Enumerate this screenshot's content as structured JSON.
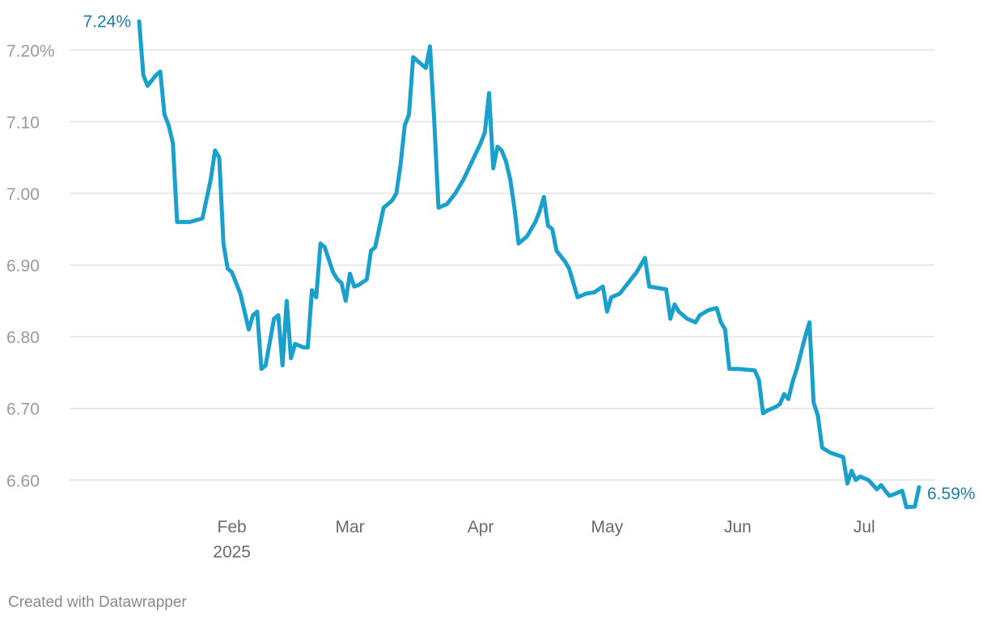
{
  "chart_data": {
    "type": "line",
    "title": "",
    "xlabel": "",
    "ylabel": "",
    "ylim": [
      6.545,
      7.245
    ],
    "y_ticks": [
      {
        "value": 7.2,
        "label": "7.20%"
      },
      {
        "value": 7.1,
        "label": "7.10"
      },
      {
        "value": 7.0,
        "label": "7.00"
      },
      {
        "value": 6.9,
        "label": "6.90"
      },
      {
        "value": 6.8,
        "label": "6.80"
      },
      {
        "value": 6.7,
        "label": "6.70"
      },
      {
        "value": 6.6,
        "label": "6.60"
      }
    ],
    "x_ticks": [
      {
        "date": "2025-02-01",
        "label": "Feb",
        "sublabel": "2025"
      },
      {
        "date": "2025-03-01",
        "label": "Mar",
        "sublabel": ""
      },
      {
        "date": "2025-04-01",
        "label": "Apr",
        "sublabel": ""
      },
      {
        "date": "2025-05-01",
        "label": "May",
        "sublabel": ""
      },
      {
        "date": "2025-06-01",
        "label": "Jun",
        "sublabel": ""
      },
      {
        "date": "2025-07-01",
        "label": "Jul",
        "sublabel": ""
      }
    ],
    "series": [
      {
        "color": "#1aa0cc",
        "points": [
          [
            "2025-01-10",
            7.24
          ],
          [
            "2025-01-11",
            7.165
          ],
          [
            "2025-01-12",
            7.15
          ],
          [
            "2025-01-14",
            7.165
          ],
          [
            "2025-01-15",
            7.17
          ],
          [
            "2025-01-16",
            7.11
          ],
          [
            "2025-01-17",
            7.095
          ],
          [
            "2025-01-18",
            7.07
          ],
          [
            "2025-01-19",
            6.96
          ],
          [
            "2025-01-22",
            6.96
          ],
          [
            "2025-01-25",
            6.965
          ],
          [
            "2025-01-27",
            7.02
          ],
          [
            "2025-01-28",
            7.06
          ],
          [
            "2025-01-29",
            7.05
          ],
          [
            "2025-01-30",
            6.93
          ],
          [
            "2025-01-31",
            6.895
          ],
          [
            "2025-02-01",
            6.89
          ],
          [
            "2025-02-03",
            6.86
          ],
          [
            "2025-02-05",
            6.81
          ],
          [
            "2025-02-06",
            6.83
          ],
          [
            "2025-02-07",
            6.835
          ],
          [
            "2025-02-08",
            6.755
          ],
          [
            "2025-02-09",
            6.76
          ],
          [
            "2025-02-11",
            6.825
          ],
          [
            "2025-02-12",
            6.83
          ],
          [
            "2025-02-13",
            6.76
          ],
          [
            "2025-02-14",
            6.85
          ],
          [
            "2025-02-15",
            6.77
          ],
          [
            "2025-02-16",
            6.79
          ],
          [
            "2025-02-18",
            6.785
          ],
          [
            "2025-02-19",
            6.785
          ],
          [
            "2025-02-20",
            6.865
          ],
          [
            "2025-02-21",
            6.855
          ],
          [
            "2025-02-22",
            6.93
          ],
          [
            "2025-02-23",
            6.925
          ],
          [
            "2025-02-25",
            6.89
          ],
          [
            "2025-02-26",
            6.88
          ],
          [
            "2025-02-27",
            6.875
          ],
          [
            "2025-02-28",
            6.85
          ],
          [
            "2025-03-01",
            6.888
          ],
          [
            "2025-03-02",
            6.87
          ],
          [
            "2025-03-03",
            6.872
          ],
          [
            "2025-03-05",
            6.88
          ],
          [
            "2025-03-06",
            6.92
          ],
          [
            "2025-03-07",
            6.925
          ],
          [
            "2025-03-09",
            6.98
          ],
          [
            "2025-03-11",
            6.99
          ],
          [
            "2025-03-12",
            7.0
          ],
          [
            "2025-03-13",
            7.04
          ],
          [
            "2025-03-14",
            7.095
          ],
          [
            "2025-03-15",
            7.11
          ],
          [
            "2025-03-16",
            7.19
          ],
          [
            "2025-03-18",
            7.18
          ],
          [
            "2025-03-19",
            7.175
          ],
          [
            "2025-03-20",
            7.205
          ],
          [
            "2025-03-21",
            7.1
          ],
          [
            "2025-03-22",
            6.98
          ],
          [
            "2025-03-24",
            6.985
          ],
          [
            "2025-03-26",
            7.0
          ],
          [
            "2025-03-28",
            7.02
          ],
          [
            "2025-03-30",
            7.045
          ],
          [
            "2025-04-01",
            7.07
          ],
          [
            "2025-04-02",
            7.085
          ],
          [
            "2025-04-03",
            7.14
          ],
          [
            "2025-04-04",
            7.035
          ],
          [
            "2025-04-05",
            7.065
          ],
          [
            "2025-04-06",
            7.06
          ],
          [
            "2025-04-07",
            7.045
          ],
          [
            "2025-04-08",
            7.02
          ],
          [
            "2025-04-09",
            6.98
          ],
          [
            "2025-04-10",
            6.93
          ],
          [
            "2025-04-12",
            6.94
          ],
          [
            "2025-04-14",
            6.96
          ],
          [
            "2025-04-15",
            6.975
          ],
          [
            "2025-04-16",
            6.995
          ],
          [
            "2025-04-17",
            6.955
          ],
          [
            "2025-04-18",
            6.95
          ],
          [
            "2025-04-19",
            6.92
          ],
          [
            "2025-04-21",
            6.905
          ],
          [
            "2025-04-22",
            6.895
          ],
          [
            "2025-04-24",
            6.855
          ],
          [
            "2025-04-26",
            6.86
          ],
          [
            "2025-04-28",
            6.862
          ],
          [
            "2025-04-30",
            6.87
          ],
          [
            "2025-05-01",
            6.835
          ],
          [
            "2025-05-02",
            6.855
          ],
          [
            "2025-05-04",
            6.86
          ],
          [
            "2025-05-06",
            6.875
          ],
          [
            "2025-05-08",
            6.89
          ],
          [
            "2025-05-10",
            6.91
          ],
          [
            "2025-05-11",
            6.87
          ],
          [
            "2025-05-13",
            6.868
          ],
          [
            "2025-05-15",
            6.866
          ],
          [
            "2025-05-16",
            6.825
          ],
          [
            "2025-05-17",
            6.845
          ],
          [
            "2025-05-18",
            6.835
          ],
          [
            "2025-05-20",
            6.825
          ],
          [
            "2025-05-22",
            6.82
          ],
          [
            "2025-05-23",
            6.83
          ],
          [
            "2025-05-25",
            6.837
          ],
          [
            "2025-05-27",
            6.84
          ],
          [
            "2025-05-28",
            6.82
          ],
          [
            "2025-05-29",
            6.81
          ],
          [
            "2025-05-30",
            6.755
          ],
          [
            "2025-06-01",
            6.755
          ],
          [
            "2025-06-05",
            6.753
          ],
          [
            "2025-06-06",
            6.74
          ],
          [
            "2025-06-07",
            6.693
          ],
          [
            "2025-06-08",
            6.697
          ],
          [
            "2025-06-10",
            6.702
          ],
          [
            "2025-06-11",
            6.706
          ],
          [
            "2025-06-12",
            6.72
          ],
          [
            "2025-06-13",
            6.713
          ],
          [
            "2025-06-14",
            6.737
          ],
          [
            "2025-06-15",
            6.755
          ],
          [
            "2025-06-17",
            6.8
          ],
          [
            "2025-06-18",
            6.82
          ],
          [
            "2025-06-19",
            6.708
          ],
          [
            "2025-06-20",
            6.69
          ],
          [
            "2025-06-21",
            6.645
          ],
          [
            "2025-06-23",
            6.638
          ],
          [
            "2025-06-26",
            6.632
          ],
          [
            "2025-06-27",
            6.595
          ],
          [
            "2025-06-28",
            6.613
          ],
          [
            "2025-06-29",
            6.6
          ],
          [
            "2025-06-30",
            6.605
          ],
          [
            "2025-07-02",
            6.6
          ],
          [
            "2025-07-04",
            6.587
          ],
          [
            "2025-07-05",
            6.593
          ],
          [
            "2025-07-06",
            6.585
          ],
          [
            "2025-07-07",
            6.578
          ],
          [
            "2025-07-08",
            6.58
          ],
          [
            "2025-07-10",
            6.585
          ],
          [
            "2025-07-11",
            6.562
          ],
          [
            "2025-07-13",
            6.563
          ],
          [
            "2025-07-14",
            6.59
          ]
        ]
      }
    ],
    "annotations": [
      {
        "date": "2025-01-10",
        "value": 7.24,
        "label": "7.24%",
        "position": "left-of-point"
      },
      {
        "date": "2025-07-14",
        "value": 6.59,
        "label": "6.59%",
        "position": "right-of-point"
      }
    ],
    "grid": true,
    "legend": "none"
  },
  "footer": {
    "credit": "Created with Datawrapper"
  }
}
